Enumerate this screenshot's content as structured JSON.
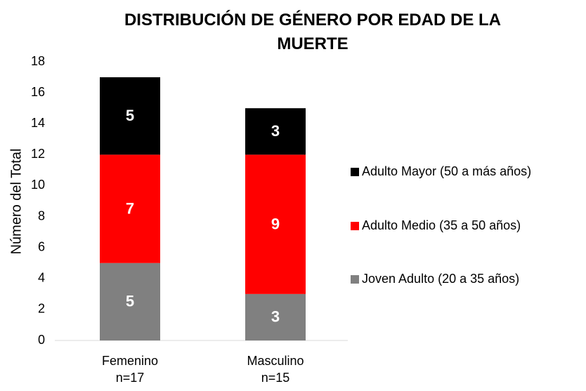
{
  "chart_data": {
    "type": "stacked_bar",
    "title": "DISTRIBUCIÓN DE GÉNERO POR EDAD DE LA MUERTE",
    "y_label": "Número del Total",
    "categories": [
      "Femenino\nn=17",
      "Masculino\nn=15"
    ],
    "series": [
      {
        "name": "Joven Adulto (20 a 35 años)",
        "color": "#808080",
        "values": [
          5,
          3
        ]
      },
      {
        "name": "Adulto Medio (35 a 50 años)",
        "color": "#ff0000",
        "values": [
          7,
          9
        ]
      },
      {
        "name": "Adulto Mayor (50 a más años)",
        "color": "#000000",
        "values": [
          5,
          3
        ]
      }
    ],
    "ylim": [
      0,
      18
    ],
    "yticks": [
      0,
      2,
      4,
      6,
      8,
      10,
      12,
      14,
      16,
      18
    ],
    "grid": false,
    "legend": "right"
  }
}
